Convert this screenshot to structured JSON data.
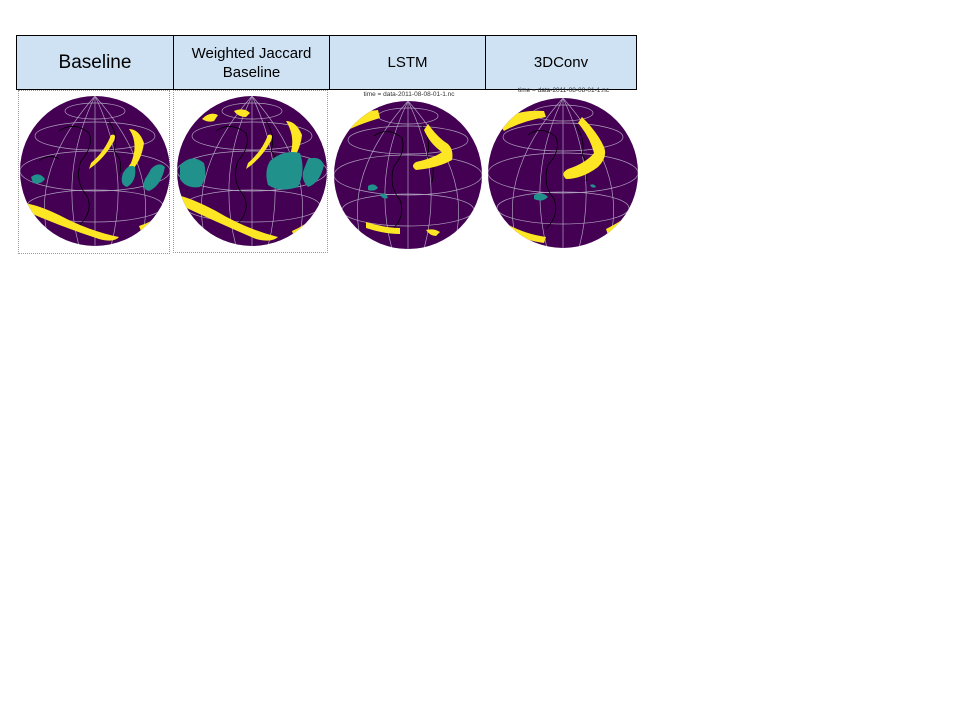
{
  "columns": [
    {
      "label": "Baseline"
    },
    {
      "label": "Weighted Jaccard Baseline"
    },
    {
      "label": "LSTM",
      "time_label": "time = data-2011-08-08-01-1.nc"
    },
    {
      "label": "3DConv",
      "time_label": "time = data-2011-08-08-01-1.nc"
    }
  ],
  "colors": {
    "header_bg": "#cfe2f3",
    "ocean": "#440154",
    "river": "#fde725",
    "cyclone": "#21918c",
    "grid": "#c8c8d6",
    "coast": "#000000"
  },
  "icons": [
    "globe-map"
  ]
}
